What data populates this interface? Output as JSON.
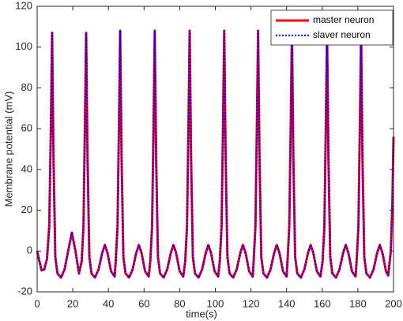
{
  "chart_data": {
    "type": "line",
    "x_label": "time(s)",
    "y_label": "Membrane potential (mV)",
    "x": [
      0,
      1,
      2.5,
      4,
      5.5,
      6.8,
      7.7,
      8.4,
      9.2,
      10.2,
      11.4,
      13.4,
      15.4,
      17.4,
      19.5,
      21.5,
      23.5,
      25,
      26,
      26.8,
      27.5,
      28.3,
      29.3,
      30.5,
      32.5,
      34.5,
      36.5,
      38,
      39.5,
      41.5,
      43.5,
      44.1,
      45.1,
      45.9,
      46.6,
      47.4,
      48.4,
      49.6,
      51.6,
      53.6,
      55.6,
      57.1,
      58.6,
      60.6,
      62.6,
      63.5,
      64.5,
      65.3,
      66,
      66.8,
      67.8,
      69,
      71,
      73,
      75,
      76.5,
      78,
      80,
      82,
      83.1,
      84.1,
      84.9,
      85.6,
      86.4,
      87.4,
      88.6,
      90.6,
      92.6,
      94.6,
      96.1,
      97.6,
      99.6,
      101.6,
      102.5,
      103.5,
      104.3,
      105,
      105.8,
      106.8,
      108,
      110,
      112,
      114,
      115.5,
      117,
      119,
      121,
      121.5,
      122.5,
      123.3,
      124,
      124.8,
      125.8,
      127,
      129,
      131,
      133,
      134.5,
      136,
      138,
      140,
      140.5,
      141.5,
      142.3,
      143,
      143.8,
      144.8,
      146,
      148,
      150,
      152,
      153.5,
      155,
      157,
      159,
      160.2,
      161.2,
      162,
      162.7,
      163.5,
      164.5,
      165.7,
      167.7,
      169.7,
      171.7,
      173.2,
      174.7,
      176.7,
      178.7,
      179.3,
      180.3,
      181.1,
      181.8,
      182.6,
      183.6,
      184.8,
      186.8,
      188.8,
      190.8,
      192.3,
      193.8,
      195.8,
      197,
      198.5,
      199.4,
      200
    ],
    "series": [
      {
        "name": "master neuron",
        "color": "#ff0000",
        "style": "solid",
        "values": [
          0,
          -4,
          -9.5,
          -9,
          -4,
          12,
          60,
          107,
          45,
          -3,
          -11,
          -13,
          -9,
          0,
          9,
          0,
          -11,
          -5,
          12,
          60,
          107,
          45,
          -3,
          -11,
          -13,
          -9,
          -1,
          3,
          -1,
          -10,
          -12.5,
          -5,
          12,
          60,
          108,
          45,
          -3,
          -11,
          -13,
          -9,
          -1,
          3,
          -1,
          -10,
          -12.5,
          -5,
          12,
          60,
          108,
          45,
          -3,
          -11,
          -13,
          -9,
          -1,
          3,
          -1,
          -10,
          -12.5,
          -5,
          12,
          60,
          108,
          45,
          -3,
          -11,
          -13,
          -9,
          -1,
          3,
          -1,
          -10,
          -12.5,
          -5,
          12,
          60,
          108,
          45,
          -3,
          -11,
          -13,
          -9,
          -1,
          3,
          -1,
          -10,
          -12.5,
          -5,
          12,
          60,
          108,
          45,
          -3,
          -11,
          -13,
          -9,
          -1,
          3,
          -1,
          -10,
          -12.5,
          -5,
          12,
          60,
          108,
          45,
          -3,
          -11,
          -13,
          -9,
          -1,
          3,
          -1,
          -10,
          -12.5,
          -5,
          12,
          60,
          108,
          45,
          -3,
          -11,
          -13,
          -9,
          -1,
          3,
          -1,
          -10,
          -12.5,
          -5,
          12,
          60,
          108,
          45,
          -3,
          -11,
          -13,
          -9,
          -1,
          3,
          -1,
          -10,
          -12,
          0,
          25,
          56
        ]
      },
      {
        "name": "slaver neuron",
        "color": "#0000ff",
        "style": "dotted",
        "values": [
          0,
          -4,
          -9.5,
          -9,
          -4,
          12,
          60,
          107,
          45,
          -3,
          -11,
          -13,
          -9,
          0,
          9,
          0,
          -11,
          -5,
          12,
          60,
          107,
          45,
          -3,
          -11,
          -13,
          -9,
          -1,
          3,
          -1,
          -10,
          -12.5,
          -5,
          12,
          60,
          108,
          45,
          -3,
          -11,
          -13,
          -9,
          -1,
          3,
          -1,
          -10,
          -12.5,
          -5,
          12,
          60,
          108,
          45,
          -3,
          -11,
          -13,
          -9,
          -1,
          3,
          -1,
          -10,
          -12.5,
          -5,
          12,
          60,
          108,
          45,
          -3,
          -11,
          -13,
          -9,
          -1,
          3,
          -1,
          -10,
          -12.5,
          -5,
          12,
          60,
          108,
          45,
          -3,
          -11,
          -13,
          -9,
          -1,
          3,
          -1,
          -10,
          -12.5,
          -5,
          12,
          60,
          108,
          45,
          -3,
          -11,
          -13,
          -9,
          -1,
          3,
          -1,
          -10,
          -12.5,
          -5,
          12,
          60,
          108,
          45,
          -3,
          -11,
          -13,
          -9,
          -1,
          3,
          -1,
          -10,
          -12.5,
          -5,
          12,
          60,
          108,
          45,
          -3,
          -11,
          -13,
          -9,
          -1,
          3,
          -1,
          -10,
          -12.5,
          -5,
          12,
          60,
          108,
          45,
          -3,
          -11,
          -13,
          -9,
          -1,
          3,
          -1,
          -10,
          -12,
          0,
          25,
          56
        ]
      }
    ],
    "xlim": [
      0,
      200
    ],
    "xticks": [
      0,
      20,
      40,
      60,
      80,
      100,
      120,
      140,
      160,
      180,
      200
    ],
    "ylim": [
      -20,
      120
    ],
    "yticks": [
      -20,
      0,
      20,
      40,
      60,
      80,
      100,
      120
    ],
    "grid": false,
    "legend": "upper right"
  }
}
